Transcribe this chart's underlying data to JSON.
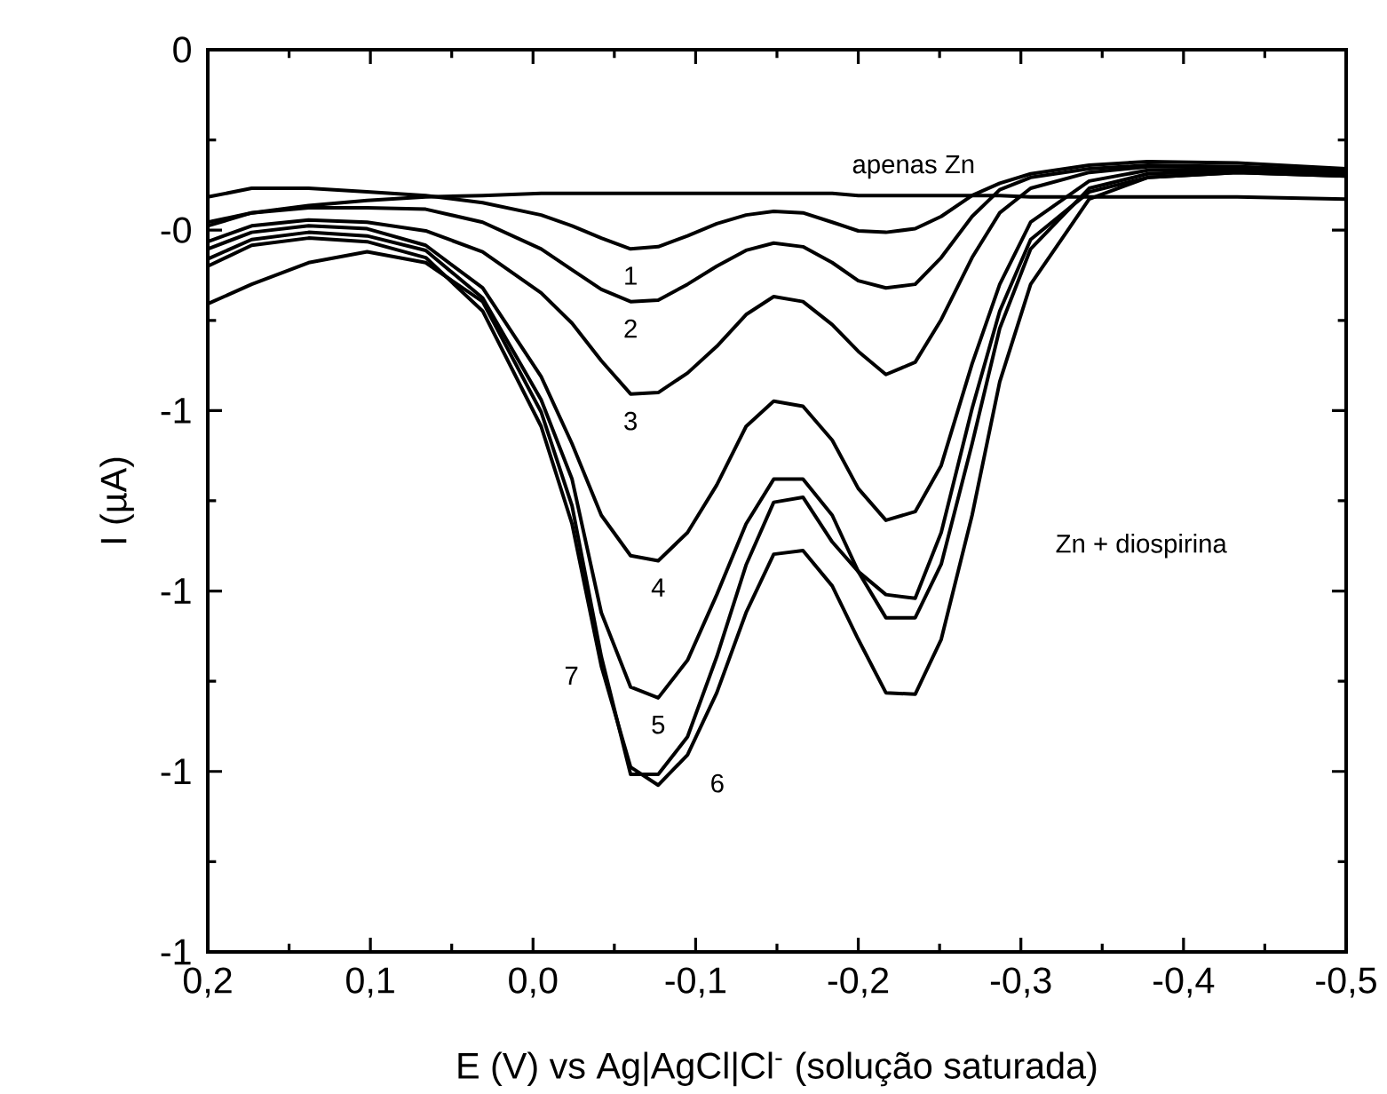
{
  "chart_data": {
    "type": "line",
    "xlabel": "E (V) vs Ag|AgCl|Cl$^{-}$ (solução saturada)",
    "ylabel": "I (µA)",
    "x": [
      0.2,
      0.173,
      0.138,
      0.102,
      0.066,
      0.031,
      -0.005,
      -0.024,
      -0.042,
      -0.06,
      -0.077,
      -0.095,
      -0.113,
      -0.131,
      -0.148,
      -0.166,
      -0.184,
      -0.2,
      -0.217,
      -0.235,
      -0.251,
      -0.27,
      -0.287,
      -0.306,
      -0.342,
      -0.378,
      -0.433,
      -0.5
    ],
    "series": [
      {
        "color": "#000000",
        "values": [
          -0.239,
          -0.226,
          -0.216,
          -0.209,
          -0.204,
          -0.202,
          -0.199,
          -0.199,
          -0.199,
          -0.199,
          -0.199,
          -0.199,
          -0.199,
          -0.199,
          -0.199,
          -0.199,
          -0.199,
          -0.202,
          -0.202,
          -0.202,
          -0.202,
          -0.202,
          -0.202,
          -0.204,
          -0.204,
          -0.204,
          -0.204,
          -0.207
        ]
      },
      {
        "name": "1",
        "color": "#000000",
        "values": [
          -0.204,
          -0.192,
          -0.192,
          -0.197,
          -0.202,
          -0.212,
          -0.229,
          -0.244,
          -0.261,
          -0.276,
          -0.273,
          -0.258,
          -0.241,
          -0.229,
          -0.224,
          -0.226,
          -0.239,
          -0.251,
          -0.253,
          -0.248,
          -0.231,
          -0.202,
          -0.185,
          -0.172,
          -0.16,
          -0.155,
          -0.157,
          -0.165
        ]
      },
      {
        "name": "2",
        "color": "#000000",
        "values": [
          -0.244,
          -0.226,
          -0.219,
          -0.219,
          -0.221,
          -0.239,
          -0.276,
          -0.305,
          -0.332,
          -0.349,
          -0.347,
          -0.325,
          -0.3,
          -0.278,
          -0.268,
          -0.273,
          -0.295,
          -0.32,
          -0.33,
          -0.325,
          -0.288,
          -0.231,
          -0.194,
          -0.177,
          -0.165,
          -0.16,
          -0.162,
          -0.17
        ]
      },
      {
        "name": "3",
        "color": "#000000",
        "values": [
          -0.266,
          -0.244,
          -0.236,
          -0.239,
          -0.251,
          -0.28,
          -0.337,
          -0.379,
          -0.431,
          -0.477,
          -0.475,
          -0.448,
          -0.411,
          -0.367,
          -0.342,
          -0.349,
          -0.381,
          -0.418,
          -0.45,
          -0.433,
          -0.374,
          -0.288,
          -0.226,
          -0.192,
          -0.17,
          -0.162,
          -0.162,
          -0.167
        ]
      },
      {
        "name": "4",
        "color": "#000000",
        "values": [
          -0.276,
          -0.253,
          -0.244,
          -0.248,
          -0.271,
          -0.33,
          -0.453,
          -0.546,
          -0.645,
          -0.701,
          -0.708,
          -0.669,
          -0.603,
          -0.522,
          -0.487,
          -0.494,
          -0.541,
          -0.608,
          -0.652,
          -0.64,
          -0.576,
          -0.435,
          -0.325,
          -0.239,
          -0.182,
          -0.167,
          -0.165,
          -0.17
        ]
      },
      {
        "name": "5",
        "color": "#000000",
        "values": [
          -0.29,
          -0.263,
          -0.253,
          -0.258,
          -0.278,
          -0.344,
          -0.485,
          -0.595,
          -0.78,
          -0.883,
          -0.898,
          -0.846,
          -0.755,
          -0.657,
          -0.595,
          -0.595,
          -0.645,
          -0.723,
          -0.787,
          -0.787,
          -0.713,
          -0.546,
          -0.386,
          -0.276,
          -0.192,
          -0.172,
          -0.167,
          -0.172
        ]
      },
      {
        "name": "6",
        "color": "#000000",
        "values": [
          -0.3,
          -0.271,
          -0.261,
          -0.266,
          -0.288,
          -0.362,
          -0.522,
          -0.657,
          -0.854,
          -0.994,
          -1.019,
          -0.977,
          -0.891,
          -0.78,
          -0.699,
          -0.694,
          -0.743,
          -0.817,
          -0.891,
          -0.893,
          -0.817,
          -0.645,
          -0.46,
          -0.325,
          -0.207,
          -0.177,
          -0.17,
          -0.175
        ]
      },
      {
        "name": "7",
        "color": "#000000",
        "values": [
          -0.352,
          -0.325,
          -0.295,
          -0.28,
          -0.295,
          -0.349,
          -0.502,
          -0.632,
          -0.841,
          -1.004,
          -1.004,
          -0.952,
          -0.841,
          -0.714,
          -0.627,
          -0.62,
          -0.682,
          -0.723,
          -0.755,
          -0.76,
          -0.669,
          -0.497,
          -0.362,
          -0.263,
          -0.197,
          -0.177,
          -0.17,
          -0.175
        ]
      }
    ],
    "xlim": [
      0.2,
      -0.5
    ],
    "ylim": [
      -1.25,
      0
    ],
    "xticks": [
      {
        "value": 0.2,
        "label": "0,2"
      },
      {
        "value": 0.1,
        "label": "0,1"
      },
      {
        "value": 0.0,
        "label": "0,0"
      },
      {
        "value": -0.1,
        "label": "-0,1"
      },
      {
        "value": -0.2,
        "label": "-0,2"
      },
      {
        "value": -0.3,
        "label": "-0,3"
      },
      {
        "value": -0.4,
        "label": "-0,4"
      },
      {
        "value": -0.5,
        "label": "-0,5"
      }
    ],
    "yticks": [
      {
        "value": 0,
        "label": "0"
      },
      {
        "value": -0.25,
        "label": "-0"
      },
      {
        "value": -0.5,
        "label": "-1"
      },
      {
        "value": -0.75,
        "label": "-1"
      },
      {
        "value": -1.0,
        "label": "-1"
      },
      {
        "value": -1.25,
        "label": "-1"
      }
    ],
    "annotations": [
      "apenas Zn",
      "Zn + diospirina"
    ],
    "marker": "none",
    "line_style": "solid",
    "grid": false,
    "legend": false
  }
}
